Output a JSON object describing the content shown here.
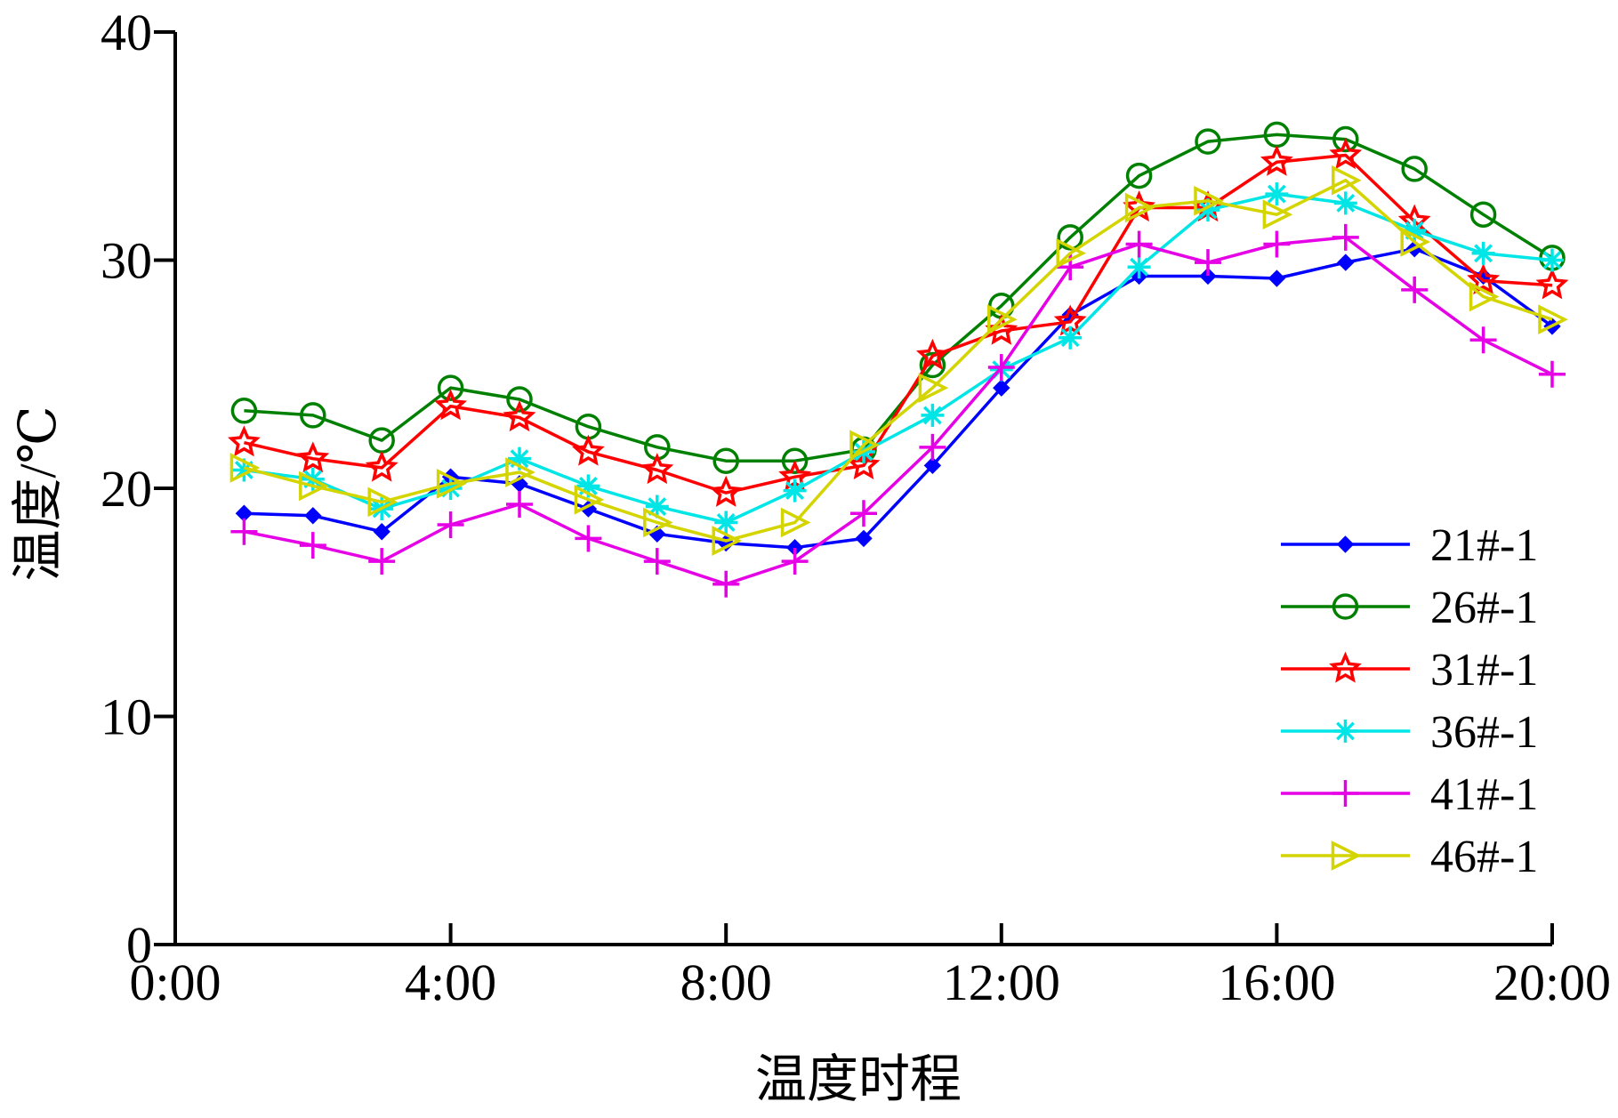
{
  "chart_data": {
    "type": "line",
    "title": "",
    "xlabel": "温度时程",
    "ylabel": "温度/℃",
    "xlim": [
      0,
      20
    ],
    "ylim": [
      0,
      40
    ],
    "x_ticks": [
      {
        "value": 0,
        "label": "0:00"
      },
      {
        "value": 4,
        "label": "4:00"
      },
      {
        "value": 8,
        "label": "8:00"
      },
      {
        "value": 12,
        "label": "12:00"
      },
      {
        "value": 16,
        "label": "16:00"
      },
      {
        "value": 20,
        "label": "20:00"
      }
    ],
    "y_ticks": [
      {
        "value": 0,
        "label": "0"
      },
      {
        "value": 10,
        "label": "10"
      },
      {
        "value": 20,
        "label": "20"
      },
      {
        "value": 30,
        "label": "30"
      },
      {
        "value": 40,
        "label": "40"
      }
    ],
    "legend_position": "bottom-right",
    "grid": false,
    "x": [
      1,
      2,
      3,
      4,
      5,
      6,
      7,
      8,
      9,
      10,
      11,
      12,
      13,
      14,
      15,
      16,
      17,
      18,
      19,
      20
    ],
    "series": [
      {
        "name": "21#-1",
        "color": "#0000ff",
        "marker": "diamond",
        "values": [
          18.9,
          18.8,
          18.1,
          20.5,
          20.2,
          19.1,
          18.0,
          17.6,
          17.4,
          17.8,
          21.0,
          24.4,
          27.6,
          29.3,
          29.3,
          29.2,
          29.9,
          30.5,
          29.3,
          27.1
        ]
      },
      {
        "name": "26#-1",
        "color": "#008000",
        "marker": "circle",
        "values": [
          23.4,
          23.2,
          22.1,
          24.4,
          23.9,
          22.7,
          21.8,
          21.2,
          21.2,
          21.7,
          25.4,
          28.0,
          31.0,
          33.7,
          35.2,
          35.5,
          35.3,
          34.0,
          32.0,
          30.1
        ]
      },
      {
        "name": "31#-1",
        "color": "#ff0000",
        "marker": "star",
        "values": [
          22.0,
          21.3,
          20.9,
          23.6,
          23.1,
          21.6,
          20.8,
          19.8,
          20.5,
          21.0,
          25.8,
          26.9,
          27.3,
          32.3,
          32.3,
          34.3,
          34.6,
          31.7,
          29.1,
          28.9
        ]
      },
      {
        "name": "36#-1",
        "color": "#00e5e5",
        "marker": "asterisk",
        "values": [
          20.8,
          20.4,
          19.1,
          20.0,
          21.3,
          20.1,
          19.2,
          18.5,
          19.9,
          21.6,
          23.2,
          25.2,
          26.6,
          29.7,
          32.2,
          32.9,
          32.5,
          31.3,
          30.3,
          30.0
        ]
      },
      {
        "name": "41#-1",
        "color": "#e600e6",
        "marker": "plus",
        "values": [
          18.1,
          17.5,
          16.8,
          18.4,
          19.3,
          17.8,
          16.8,
          15.8,
          16.8,
          18.9,
          21.8,
          25.3,
          29.7,
          30.7,
          29.9,
          30.7,
          31.0,
          28.7,
          26.5,
          25.0
        ]
      },
      {
        "name": "46#-1",
        "color": "#d4d400",
        "marker": "triangle-right",
        "values": [
          20.9,
          20.1,
          19.4,
          20.2,
          20.7,
          19.5,
          18.5,
          17.7,
          18.5,
          21.9,
          24.4,
          27.4,
          30.3,
          32.3,
          32.6,
          32.0,
          33.5,
          30.8,
          28.4,
          27.4
        ]
      }
    ]
  }
}
